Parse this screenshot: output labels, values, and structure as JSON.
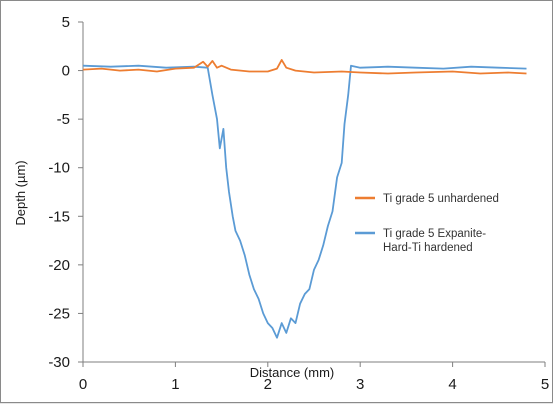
{
  "chart_data": {
    "type": "line",
    "title": "",
    "xlabel": "Distance (mm)",
    "ylabel": "Depth (µm)",
    "xlim": [
      0,
      5
    ],
    "ylim": [
      -30,
      5
    ],
    "xticks": [
      0,
      1,
      2,
      3,
      4,
      5
    ],
    "yticks": [
      5,
      0,
      -5,
      -10,
      -15,
      -20,
      -25,
      -30
    ],
    "grid": false,
    "legend_position": "right",
    "series": [
      {
        "name": "Ti grade 5 unhardened",
        "color": "#ed7d31",
        "x": [
          0,
          0.2,
          0.4,
          0.6,
          0.8,
          1.0,
          1.2,
          1.3,
          1.35,
          1.4,
          1.45,
          1.5,
          1.6,
          1.8,
          2.0,
          2.1,
          2.15,
          2.2,
          2.3,
          2.5,
          2.8,
          3.0,
          3.3,
          3.6,
          4.0,
          4.3,
          4.6,
          4.8
        ],
        "y": [
          0.1,
          0.2,
          0.0,
          0.1,
          -0.1,
          0.2,
          0.3,
          0.9,
          0.4,
          1.0,
          0.3,
          0.5,
          0.1,
          -0.1,
          -0.1,
          0.2,
          1.1,
          0.3,
          0.0,
          -0.2,
          -0.1,
          -0.2,
          -0.3,
          -0.2,
          -0.1,
          -0.3,
          -0.2,
          -0.3
        ]
      },
      {
        "name": "Ti grade 5 Expanite-Hard-Ti hardened",
        "color": "#5b9bd5",
        "x": [
          0,
          0.3,
          0.6,
          0.9,
          1.2,
          1.35,
          1.4,
          1.45,
          1.48,
          1.52,
          1.55,
          1.58,
          1.62,
          1.65,
          1.7,
          1.75,
          1.8,
          1.85,
          1.9,
          1.95,
          2.0,
          2.05,
          2.1,
          2.15,
          2.2,
          2.25,
          2.3,
          2.35,
          2.4,
          2.45,
          2.5,
          2.55,
          2.6,
          2.65,
          2.7,
          2.75,
          2.8,
          2.83,
          2.87,
          2.9,
          3.0,
          3.3,
          3.6,
          3.9,
          4.2,
          4.5,
          4.8
        ],
        "y": [
          0.5,
          0.4,
          0.5,
          0.3,
          0.4,
          0.3,
          -2.5,
          -5.0,
          -8.0,
          -6.0,
          -10.0,
          -12.5,
          -15.0,
          -16.5,
          -17.5,
          -19.0,
          -21.0,
          -22.5,
          -23.5,
          -25.0,
          -26.0,
          -26.5,
          -27.5,
          -26.0,
          -27.0,
          -25.5,
          -26.0,
          -24.0,
          -23.0,
          -22.5,
          -20.5,
          -19.5,
          -18.0,
          -16.0,
          -14.5,
          -11.0,
          -9.5,
          -5.5,
          -2.5,
          0.5,
          0.3,
          0.4,
          0.3,
          0.2,
          0.4,
          0.3,
          0.2
        ]
      }
    ]
  }
}
